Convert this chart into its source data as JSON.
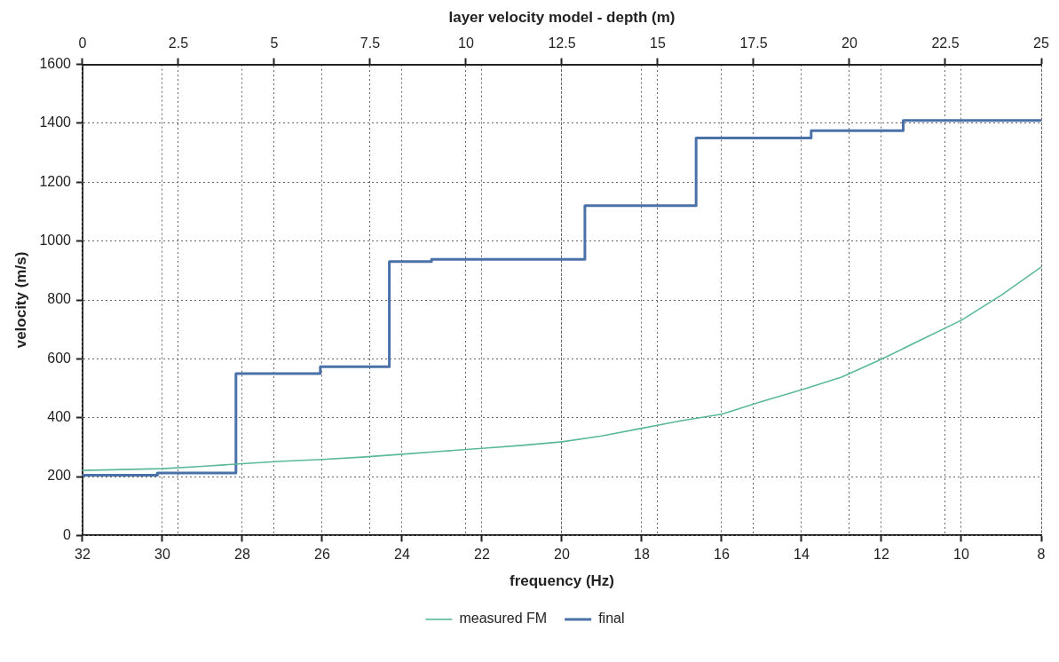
{
  "chart_data": {
    "type": "line",
    "x2label": "layer velocity model - depth (m)",
    "xlabel": "frequency (Hz)",
    "ylabel": "velocity (m/s)",
    "xlim": [
      32,
      8
    ],
    "xticks": [
      32,
      30,
      28,
      26,
      24,
      22,
      20,
      18,
      16,
      14,
      12,
      10,
      8
    ],
    "x2lim": [
      0,
      25
    ],
    "x2ticks": [
      0,
      2.5,
      5,
      7.5,
      10,
      12.5,
      15,
      17.5,
      20,
      22.5,
      25
    ],
    "ylim": [
      0,
      1600
    ],
    "yticks": [
      0,
      200,
      400,
      600,
      800,
      1000,
      1200,
      1400,
      1600
    ],
    "grid": true,
    "legend": "bottom",
    "marker": "none",
    "series": [
      {
        "name": "measured FM",
        "type": "line",
        "color": "#5ab99a",
        "x": [
          32,
          31,
          30,
          29,
          28,
          27,
          26,
          25,
          24,
          23,
          22,
          21,
          20,
          19,
          18,
          17,
          16,
          15,
          14,
          13,
          12,
          11,
          10,
          9,
          8
        ],
        "values": [
          221,
          224,
          227,
          235,
          244,
          252,
          258,
          266,
          276,
          286,
          296,
          306,
          318,
          338,
          364,
          390,
          412,
          455,
          495,
          538,
          599,
          665,
          731,
          816,
          912
        ]
      },
      {
        "name": "final",
        "type": "step",
        "axis": "x2",
        "color": "#4a72a8",
        "x": [
          0,
          1.95,
          4.0,
          6.2,
          8.0,
          9.1,
          13.1,
          16.0,
          19.0,
          21.4,
          25
        ],
        "values": [
          205,
          212,
          550,
          573,
          930,
          938,
          1120,
          1350,
          1375,
          1410,
          1410
        ]
      }
    ]
  }
}
